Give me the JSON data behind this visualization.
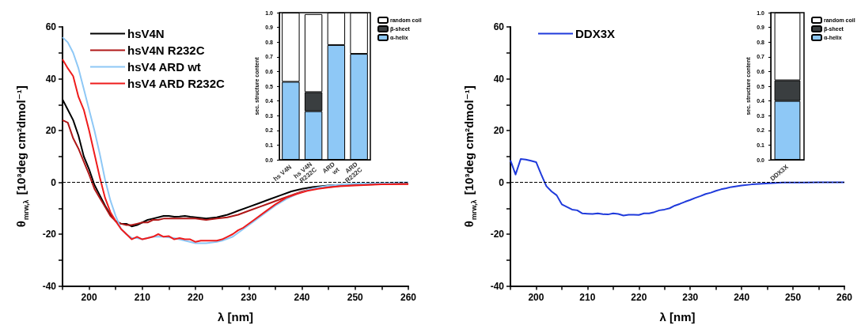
{
  "chart_data": [
    {
      "type": "line",
      "xlabel": "λ [nm]",
      "ylabel": "θ$_{mrw,λ}$ [10³deg cm²dmol⁻¹]",
      "legend": "top left",
      "line_style": "solid",
      "marker": "none",
      "xlim": [
        195,
        260
      ],
      "xticks": [
        {
          "value": 195,
          "label": null
        },
        200,
        {
          "value": 205,
          "label": null
        },
        210,
        {
          "value": 215,
          "label": null
        },
        220,
        {
          "value": 225,
          "label": null
        },
        230,
        {
          "value": 235,
          "label": null
        },
        240,
        {
          "value": 245,
          "label": null
        },
        250,
        {
          "value": 255,
          "label": null
        },
        260
      ],
      "ylim": [
        -40,
        60
      ],
      "yticks": [
        -40,
        {
          "value": -30,
          "label": null
        },
        -20,
        {
          "value": -10,
          "label": null
        },
        0,
        {
          "value": 10,
          "label": null
        },
        20,
        {
          "value": 30,
          "label": null
        },
        40,
        {
          "value": 50,
          "label": null
        },
        60
      ],
      "ref_lines": [
        {
          "axis": "y",
          "value": 0,
          "color": "#000000",
          "line_style": "dashed"
        }
      ],
      "series": [
        {
          "name": "hsV4N",
          "color": "#000000",
          "x": [
            195,
            196,
            197,
            198,
            199,
            200,
            201,
            202,
            203,
            204,
            205,
            206,
            207,
            208,
            209,
            210,
            211,
            212,
            213,
            214,
            215,
            216,
            217,
            218,
            219,
            220,
            222,
            224,
            226,
            228,
            230,
            232,
            234,
            236,
            238,
            240,
            242,
            245,
            250,
            255,
            260
          ],
          "values": [
            32,
            28,
            24,
            18,
            10,
            5,
            -1,
            -5,
            -9,
            -12.5,
            -15,
            -16,
            -16,
            -17,
            -16.5,
            -15.5,
            -14.5,
            -14,
            -13.5,
            -13,
            -13,
            -13.3,
            -13.2,
            -13,
            -13.3,
            -13.5,
            -14,
            -13.5,
            -12.5,
            -11,
            -9.5,
            -8,
            -6.5,
            -5,
            -3.5,
            -2.5,
            -1.8,
            -1.2,
            -0.7,
            -0.4,
            -0.2
          ]
        },
        {
          "name": "hsV4N R232C",
          "color": "#b01818",
          "x": [
            195,
            196,
            197,
            198,
            199,
            200,
            201,
            202,
            203,
            204,
            205,
            206,
            207,
            208,
            209,
            210,
            211,
            212,
            213,
            214,
            216,
            218,
            220,
            222,
            224,
            226,
            228,
            230,
            232,
            234,
            236,
            238,
            240,
            242,
            245,
            248,
            250,
            255,
            260
          ],
          "values": [
            24,
            23,
            17,
            13,
            8,
            3,
            -2.5,
            -6,
            -9.5,
            -13,
            -15,
            -16,
            -16.5,
            -16.5,
            -16,
            -15.5,
            -15.5,
            -14.5,
            -14.5,
            -14,
            -14,
            -14,
            -14,
            -14.5,
            -14,
            -13.5,
            -12.5,
            -11,
            -9.5,
            -8,
            -6.5,
            -5,
            -3.5,
            -2.5,
            -1.8,
            -1.2,
            -1,
            -0.7,
            -0.6
          ]
        },
        {
          "name": "hsV4 ARD wt",
          "color": "#8ec8f6",
          "x": [
            195,
            196,
            197,
            198,
            199,
            200,
            201,
            202,
            203,
            204,
            205,
            206,
            207,
            208,
            209,
            210,
            212,
            214,
            216,
            218,
            220,
            222,
            224,
            225,
            227,
            229,
            231,
            233,
            235,
            237,
            239,
            241,
            243,
            245,
            248,
            250,
            255,
            260
          ],
          "values": [
            56,
            54,
            50,
            44,
            36,
            28,
            20,
            11,
            1,
            -7,
            -13,
            -18,
            -20,
            -21.5,
            -21.5,
            -22,
            -21,
            -21,
            -21.5,
            -22.5,
            -23.5,
            -23.5,
            -23,
            -22.5,
            -21,
            -18,
            -15,
            -12,
            -9,
            -6.5,
            -4.5,
            -3,
            -2,
            -1.3,
            -0.8,
            -0.5,
            -0.2,
            0
          ]
        },
        {
          "name": "hsV4 ARD R232C",
          "color": "#ee1c1c",
          "x": [
            195,
            196,
            197,
            198,
            199,
            200,
            201,
            202,
            203,
            204,
            205,
            206,
            207,
            208,
            209,
            210,
            211,
            212,
            213,
            214,
            215,
            216,
            217,
            218,
            219,
            220,
            221,
            222,
            224,
            225,
            226,
            227,
            228,
            229,
            231,
            233,
            235,
            237,
            239,
            241,
            243,
            245,
            247,
            250,
            255,
            260
          ],
          "values": [
            47.5,
            44,
            41,
            33,
            28,
            20,
            11,
            2,
            -6,
            -11.5,
            -15,
            -18,
            -20,
            -22,
            -21,
            -22,
            -21.5,
            -21,
            -20,
            -21,
            -20.8,
            -22,
            -21.5,
            -22,
            -22,
            -23,
            -22.5,
            -22.5,
            -22.5,
            -22,
            -21,
            -20,
            -18.5,
            -17.5,
            -14.5,
            -11.5,
            -8.5,
            -6,
            -4.5,
            -3.3,
            -2.5,
            -2,
            -1.5,
            -1.2,
            -0.8,
            -0.7
          ]
        }
      ]
    },
    {
      "type": "bar",
      "stacked": true,
      "ylabel": "sec. structure content",
      "legend": "right",
      "categories": [
        "hs V4N",
        "hs V4N\nR232C",
        "ARD\nwt",
        "ARD\nR232C"
      ],
      "ylim": [
        0,
        1
      ],
      "yticks": [
        {
          "value": 0,
          "label": "0.0"
        },
        {
          "value": 0.1,
          "label": "0.1"
        },
        {
          "value": 0.2,
          "label": "0.2"
        },
        {
          "value": 0.3,
          "label": "0.3"
        },
        {
          "value": 0.4,
          "label": "0.4"
        },
        {
          "value": 0.5,
          "label": "0.5"
        },
        {
          "value": 0.6,
          "label": "0.6"
        },
        {
          "value": 0.7,
          "label": "0.7"
        },
        {
          "value": 0.8,
          "label": "0.8"
        },
        {
          "value": 0.9,
          "label": "0.9"
        },
        {
          "value": 1,
          "label": "1.0"
        }
      ],
      "series": [
        {
          "name": "α-helix",
          "color": "#8ec8f6",
          "values": [
            0.53,
            0.33,
            0.78,
            0.72
          ]
        },
        {
          "name": "β-sheet",
          "color": "#3a3e40",
          "values": [
            null,
            0.13,
            null,
            null
          ]
        },
        {
          "name": "random coil",
          "color": "#ffffff",
          "values": [
            0.47,
            0.53,
            0.22,
            0.28
          ]
        }
      ]
    },
    {
      "type": "line",
      "xlabel": "λ [nm]",
      "ylabel": "θ$_{mrw,λ}$ [10³deg cm²dmol⁻¹]",
      "legend": "top left",
      "line_style": "solid",
      "marker": "none",
      "xlim": [
        195,
        260
      ],
      "xticks": [
        {
          "value": 195,
          "label": null
        },
        200,
        {
          "value": 205,
          "label": null
        },
        210,
        {
          "value": 215,
          "label": null
        },
        220,
        {
          "value": 225,
          "label": null
        },
        230,
        {
          "value": 235,
          "label": null
        },
        240,
        {
          "value": 245,
          "label": null
        },
        250,
        {
          "value": 255,
          "label": null
        },
        260
      ],
      "ylim": [
        -40,
        60
      ],
      "yticks": [
        -40,
        {
          "value": -30,
          "label": null
        },
        -20,
        {
          "value": -10,
          "label": null
        },
        0,
        {
          "value": 10,
          "label": null
        },
        20,
        {
          "value": 30,
          "label": null
        },
        40,
        {
          "value": 50,
          "label": null
        },
        60
      ],
      "ref_lines": [
        {
          "axis": "y",
          "value": 0,
          "color": "#000000",
          "line_style": "dashed"
        }
      ],
      "series": [
        {
          "name": "DDX3X",
          "color": "#1f3adb",
          "x": [
            195,
            196,
            197,
            198,
            199,
            200,
            201,
            202,
            203,
            204,
            205,
            206,
            207,
            208,
            209,
            210,
            211,
            212,
            213,
            214,
            215,
            216,
            217,
            218,
            219,
            220,
            221,
            222,
            223,
            224,
            225,
            226,
            227,
            228,
            229,
            230,
            231,
            232,
            233,
            234,
            235,
            236,
            237,
            238,
            239,
            240,
            242,
            244,
            246,
            248,
            250,
            255,
            260
          ],
          "values": [
            8.5,
            3,
            9,
            8.8,
            8.3,
            7.8,
            3,
            -1.5,
            -3.5,
            -5,
            -8.5,
            -9.5,
            -10.5,
            -10.8,
            -12,
            -12.1,
            -12.2,
            -12,
            -12.3,
            -12.4,
            -12,
            -12.2,
            -12.8,
            -12.5,
            -12.5,
            -12.6,
            -12,
            -12,
            -11.5,
            -10.8,
            -10.5,
            -10,
            -9,
            -8.3,
            -7.5,
            -6.8,
            -6,
            -5.3,
            -4.5,
            -4,
            -3.3,
            -2.7,
            -2.3,
            -1.8,
            -1.5,
            -1.2,
            -0.8,
            -0.5,
            -0.3,
            -0.1,
            -0.1,
            0,
            0
          ]
        }
      ]
    },
    {
      "type": "bar",
      "stacked": true,
      "ylabel": "sec. structure content",
      "legend": "right",
      "categories": [
        "DDX3X"
      ],
      "ylim": [
        0,
        1
      ],
      "yticks": [
        {
          "value": 0,
          "label": "0.0"
        },
        {
          "value": 0.1,
          "label": "0.1"
        },
        {
          "value": 0.2,
          "label": "0.2"
        },
        {
          "value": 0.3,
          "label": "0.3"
        },
        {
          "value": 0.4,
          "label": "0.4"
        },
        {
          "value": 0.5,
          "label": "0.5"
        },
        {
          "value": 0.6,
          "label": "0.6"
        },
        {
          "value": 0.7,
          "label": "0.7"
        },
        {
          "value": 0.8,
          "label": "0.8"
        },
        {
          "value": 0.9,
          "label": "0.9"
        },
        {
          "value": 1,
          "label": "1.0"
        }
      ],
      "series": [
        {
          "name": "α-helix",
          "color": "#8ec8f6",
          "values": [
            0.4
          ]
        },
        {
          "name": "β-sheet",
          "color": "#3a3e40",
          "values": [
            0.14
          ]
        },
        {
          "name": "random coil",
          "color": "#ffffff",
          "values": [
            0.46
          ]
        }
      ]
    }
  ]
}
